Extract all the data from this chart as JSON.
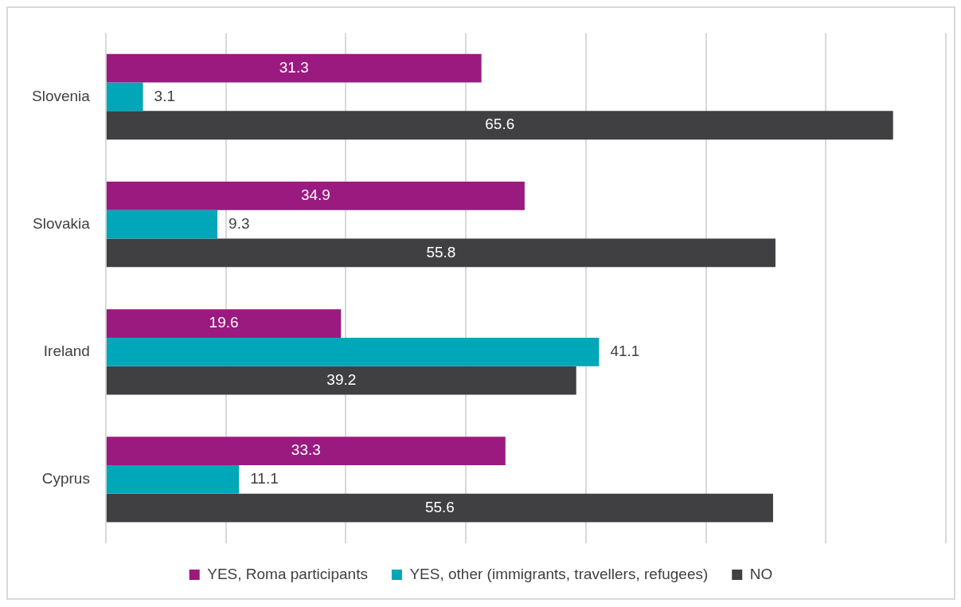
{
  "chart_data": {
    "type": "bar",
    "orientation": "horizontal",
    "categories": [
      "Slovenia",
      "Slovakia",
      "Ireland",
      "Cyprus"
    ],
    "series": [
      {
        "name": "YES, Roma participants",
        "color": "#9b1a7f",
        "values": [
          31.3,
          34.9,
          19.6,
          33.3
        ]
      },
      {
        "name": "YES, other (immigrants, travellers, refugees)",
        "color": "#00a7b9",
        "values": [
          3.1,
          9.3,
          41.1,
          11.1
        ]
      },
      {
        "name": "NO",
        "color": "#404042",
        "values": [
          65.6,
          55.8,
          39.2,
          55.6
        ]
      }
    ],
    "xlim": [
      0,
      70
    ],
    "xticks": [
      {
        "value": 0,
        "label": null
      },
      {
        "value": 10,
        "label": null
      },
      {
        "value": 20,
        "label": null
      },
      {
        "value": 30,
        "label": null
      },
      {
        "value": 40,
        "label": null
      },
      {
        "value": 50,
        "label": null
      },
      {
        "value": 60,
        "label": null
      },
      {
        "value": 70,
        "label": null
      }
    ],
    "tick_labels": "y",
    "grid": "x",
    "legend": "bottom",
    "data_labels": true
  }
}
